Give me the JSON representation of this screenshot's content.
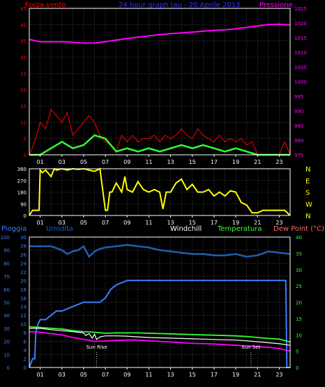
{
  "colors": {
    "background": "#000000",
    "frame": "#ffffff",
    "grid": "#6e6e6e",
    "wind_speed": "#ff0000",
    "wind_avg": "#33ff33",
    "pressure": "#ff00ff",
    "wind_dir": "#ffff00",
    "rain": "#3f7dff",
    "humidity": "#1f5fb0",
    "windchill": "#ffffff",
    "temperature": "#33ff33",
    "dew_point": "#ff00ff",
    "title": "#3333ff",
    "left_label": "#ff0000",
    "right_label": "#ff00ff",
    "left_axis2": "#3f7dff",
    "humidity_label": "#1f5fb0",
    "windchill_label": "#ffffff",
    "temp_label": "#33ff33",
    "dew_label": "#ff6666",
    "dir_letters": "#ffff00"
  },
  "chart_data": [
    {
      "type": "line",
      "title": "24 hour graph (au - 20 Aprile 2013",
      "ylabel": "Forza vento",
      "y2label": "Pressione",
      "ylim": [
        0,
        45
      ],
      "y2lim": [
        975,
        1025
      ],
      "xlim": [
        0,
        24
      ],
      "yticks": [
        "0",
        "5",
        "10",
        "15",
        "20",
        "25",
        "30",
        "35",
        "40",
        "45"
      ],
      "y2ticks": [
        "975",
        "980",
        "985",
        "990",
        "995",
        "1000",
        "1005",
        "1010",
        "1015",
        "1020",
        "1025"
      ],
      "xticks": [
        "01",
        "03",
        "05",
        "07",
        "09",
        "11",
        "13",
        "15",
        "17",
        "19",
        "21",
        "23"
      ],
      "grid": true,
      "series": [
        {
          "key": "wind",
          "x": [
            0.0,
            0.5,
            1.0,
            1.5,
            2.0,
            2.5,
            3.0,
            3.5,
            4.0,
            4.5,
            5.0,
            5.5,
            6.0,
            6.5,
            7.0,
            7.5,
            8.0,
            8.5,
            9.0,
            9.5,
            10.0,
            10.5,
            11.0,
            11.5,
            12.0,
            12.5,
            13.0,
            13.5,
            14.0,
            14.5,
            15.0,
            15.5,
            16.0,
            16.5,
            17.0,
            17.5,
            18.0,
            18.5,
            19.0,
            19.5,
            20.0,
            20.5,
            21.0,
            21.5,
            22.0,
            22.5,
            23.0,
            23.5,
            24.0
          ],
          "y": [
            0,
            4,
            10,
            8,
            14,
            12,
            10,
            13,
            6,
            8,
            10,
            12,
            10,
            6,
            4,
            3,
            1,
            6,
            4,
            6,
            4,
            5,
            5,
            6,
            4,
            6,
            5,
            6,
            8,
            6,
            5,
            8,
            6,
            5,
            4,
            6,
            4,
            5,
            4,
            5,
            3,
            4,
            0,
            0,
            0,
            0,
            0,
            4,
            0
          ]
        },
        {
          "key": "wind_avg",
          "x": [
            0,
            1,
            2,
            3,
            4,
            5,
            6,
            7,
            8,
            9,
            10,
            11,
            12,
            13,
            14,
            15,
            16,
            17,
            18,
            19,
            20,
            21,
            22,
            23,
            24
          ],
          "y": [
            0,
            0,
            2,
            4,
            2,
            3,
            6,
            5,
            1,
            2,
            1,
            2,
            1,
            2,
            3,
            2,
            3,
            2,
            1,
            2,
            1,
            0,
            0,
            0,
            0
          ]
        },
        {
          "key": "pressure",
          "x": [
            0,
            0.5,
            1,
            2,
            3,
            4,
            5,
            6,
            7,
            8,
            9,
            10,
            11,
            12,
            13,
            14,
            15,
            16,
            17,
            18,
            19,
            20,
            21,
            22,
            23,
            24
          ],
          "y": [
            1014.4,
            1014.0,
            1013.6,
            1013.6,
            1013.6,
            1013.4,
            1013.2,
            1013.2,
            1013.6,
            1014.2,
            1014.7,
            1015.2,
            1015.6,
            1016.0,
            1016.4,
            1016.6,
            1016.9,
            1017.2,
            1017.5,
            1017.7,
            1018.0,
            1018.5,
            1019.0,
            1019.5,
            1019.6,
            1019.3
          ]
        }
      ]
    },
    {
      "type": "line",
      "ylim": [
        0,
        360
      ],
      "yticks": [
        "0",
        "90",
        "180",
        "270",
        "360"
      ],
      "right_labels": [
        "N",
        "W",
        "S",
        "E",
        "N"
      ],
      "series": [
        {
          "key": "wind_dir",
          "x": [
            0,
            0.3,
            0.6,
            0.9,
            1.0,
            1.2,
            1.5,
            2.0,
            2.3,
            2.5,
            3.0,
            3.5,
            4.0,
            4.5,
            5.0,
            5.5,
            6.0,
            6.5,
            7.0,
            7.2,
            7.4,
            7.6,
            8.0,
            8.5,
            8.8,
            9.0,
            9.5,
            10.0,
            10.5,
            11.0,
            11.5,
            12.0,
            12.3,
            12.6,
            13.0,
            13.5,
            14.0,
            14.5,
            15.0,
            15.5,
            16.0,
            16.5,
            17.0,
            17.5,
            18.0,
            18.5,
            19.0,
            19.5,
            20.0,
            20.5,
            21.0,
            21.5,
            22.0,
            22.5,
            23.0,
            23.5,
            24.0
          ],
          "y": [
            0,
            40,
            40,
            40,
            350,
            330,
            350,
            300,
            360,
            350,
            360,
            350,
            360,
            355,
            360,
            350,
            340,
            360,
            40,
            40,
            180,
            180,
            250,
            180,
            300,
            200,
            180,
            260,
            200,
            180,
            200,
            180,
            50,
            180,
            180,
            250,
            280,
            200,
            240,
            180,
            180,
            200,
            150,
            180,
            150,
            190,
            180,
            100,
            80,
            20,
            20,
            40,
            40,
            40,
            40,
            40,
            0
          ]
        }
      ]
    },
    {
      "type": "line",
      "labels": [
        "Pioggia",
        "Umidita",
        "Windchill",
        "Temperatura",
        "Dew Point (°C)"
      ],
      "ylim": [
        0,
        100
      ],
      "y2lim": [
        0,
        40
      ],
      "yticks": [
        "0",
        "10",
        "20",
        "30",
        "40",
        "50",
        "60",
        "70",
        "80",
        "90",
        "100"
      ],
      "yticks_rain": [
        "0",
        "2",
        "4",
        "6",
        "8",
        "10",
        "12",
        "14",
        "16",
        "18",
        "20",
        "22",
        "24",
        "26",
        "28",
        "30"
      ],
      "y2ticks": [
        "0",
        "5",
        "10",
        "15",
        "20",
        "25",
        "30",
        "35",
        "40"
      ],
      "annotations": [
        {
          "text": "Sun Rise",
          "x": 6.2
        },
        {
          "text": "Sun Set",
          "x": 20.4
        }
      ],
      "series": [
        {
          "key": "humidity",
          "x": [
            0,
            1,
            2,
            3,
            3.5,
            4,
            4.5,
            5,
            5.5,
            6,
            6.5,
            7,
            8,
            9,
            10,
            11,
            12,
            13,
            14,
            15,
            16,
            17,
            18,
            19,
            20,
            21,
            22,
            23,
            24
          ],
          "y": [
            93,
            93,
            93,
            90,
            87,
            89,
            90,
            93,
            85,
            89,
            91,
            92,
            93,
            94,
            93,
            92,
            90,
            89,
            88,
            87,
            87,
            86,
            86,
            87,
            85,
            86,
            89,
            88,
            87
          ]
        },
        {
          "key": "rain",
          "x": [
            0,
            0.3,
            0.5,
            0.6,
            0.8,
            1.0,
            1.5,
            2.0,
            2.5,
            3.0,
            4.0,
            5.0,
            6.0,
            6.5,
            7.0,
            7.5,
            8.0,
            9.0,
            10,
            12,
            14,
            16,
            18,
            20,
            22,
            23.6,
            23.7,
            24.0
          ],
          "y": [
            0,
            2,
            2,
            8,
            10,
            11,
            11,
            12,
            13,
            13,
            14,
            15,
            15,
            15,
            16,
            18,
            19,
            20,
            20,
            20,
            20,
            20,
            20,
            20,
            20,
            20,
            0,
            0
          ]
        },
        {
          "key": "windchill",
          "x": [
            0,
            1,
            2,
            3,
            4,
            5,
            5.2,
            5.5,
            5.8,
            6.0,
            6.2,
            6.5,
            7,
            8,
            9,
            10,
            11,
            12,
            13,
            14,
            15,
            16,
            17,
            18,
            19,
            20,
            21,
            22,
            23,
            24
          ],
          "y": [
            12,
            12,
            11.6,
            11.3,
            11,
            10.6,
            9.8,
            10.4,
            9.0,
            10.2,
            8.6,
            9.4,
            9.7,
            9.7,
            9.6,
            9.4,
            9.2,
            9.1,
            9.0,
            8.9,
            8.8,
            8.7,
            8.6,
            8.5,
            8.4,
            8.2,
            7.9,
            7.6,
            7.3,
            6.8
          ]
        },
        {
          "key": "temperature",
          "x": [
            0,
            1,
            2,
            3,
            4,
            5,
            6,
            7,
            8,
            9,
            10,
            11,
            12,
            13,
            14,
            15,
            16,
            17,
            18,
            19,
            20,
            21,
            22,
            23,
            24
          ],
          "y": [
            12.5,
            12.3,
            12.0,
            11.8,
            11.3,
            11.0,
            10.8,
            10.5,
            10.6,
            10.6,
            10.6,
            10.5,
            10.4,
            10.3,
            10.2,
            10.1,
            10.0,
            9.9,
            9.8,
            9.7,
            9.5,
            9.2,
            8.9,
            8.7,
            7.8
          ]
        },
        {
          "key": "dew_point",
          "x": [
            0,
            1,
            2,
            3,
            4,
            5,
            6,
            7,
            8,
            9,
            10,
            11,
            12,
            13,
            14,
            15,
            16,
            17,
            18,
            19,
            20,
            21,
            22,
            23,
            24
          ],
          "y": [
            11.0,
            10.8,
            10.4,
            10.0,
            9.2,
            8.6,
            8.0,
            8.1,
            8.3,
            8.4,
            8.4,
            8.2,
            8.0,
            7.8,
            7.6,
            7.4,
            7.3,
            7.2,
            7.0,
            6.8,
            6.6,
            6.4,
            6.2,
            5.8,
            5.0
          ]
        }
      ]
    }
  ]
}
